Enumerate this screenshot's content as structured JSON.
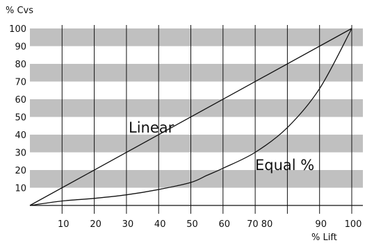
{
  "chart_data": {
    "type": "line",
    "title": "",
    "ylabel": "% Cvs",
    "xlabel": "% Lift",
    "xlim": [
      0,
      100
    ],
    "ylim": [
      0,
      100
    ],
    "y_ticks": [
      "10",
      "20",
      "30",
      "40",
      "50",
      "60",
      "70",
      "80",
      "90",
      "100"
    ],
    "x_ticks": [
      "10",
      "20",
      "30",
      "40",
      "50",
      "60",
      "70",
      "80",
      "90",
      "100"
    ],
    "x_tick_values": [
      10,
      20,
      30,
      40,
      50,
      60,
      70,
      80,
      90,
      100
    ],
    "x_tick_text": [
      {
        "text": "10",
        "at": 10
      },
      {
        "text": "20",
        "at": 20
      },
      {
        "text": "30",
        "at": 30
      },
      {
        "text": "40",
        "at": 40
      },
      {
        "text": "50",
        "at": 50
      },
      {
        "text": "60",
        "at": 60
      },
      {
        "text": "70 80",
        "at": 71
      },
      {
        "text": "90",
        "at": 90
      },
      {
        "text": "100",
        "at": 100
      }
    ],
    "series": [
      {
        "name": "Linear",
        "x": [
          0,
          100
        ],
        "y": [
          0,
          100
        ]
      },
      {
        "name": "Equal %",
        "x": [
          0,
          10,
          20,
          30,
          40,
          50,
          55,
          60,
          70,
          80,
          90,
          100
        ],
        "y": [
          0,
          2.5,
          4,
          6,
          9,
          13,
          17,
          21,
          30,
          44,
          66,
          100
        ]
      }
    ],
    "band_color": "#c0c0c0",
    "line_color": "#111111"
  }
}
